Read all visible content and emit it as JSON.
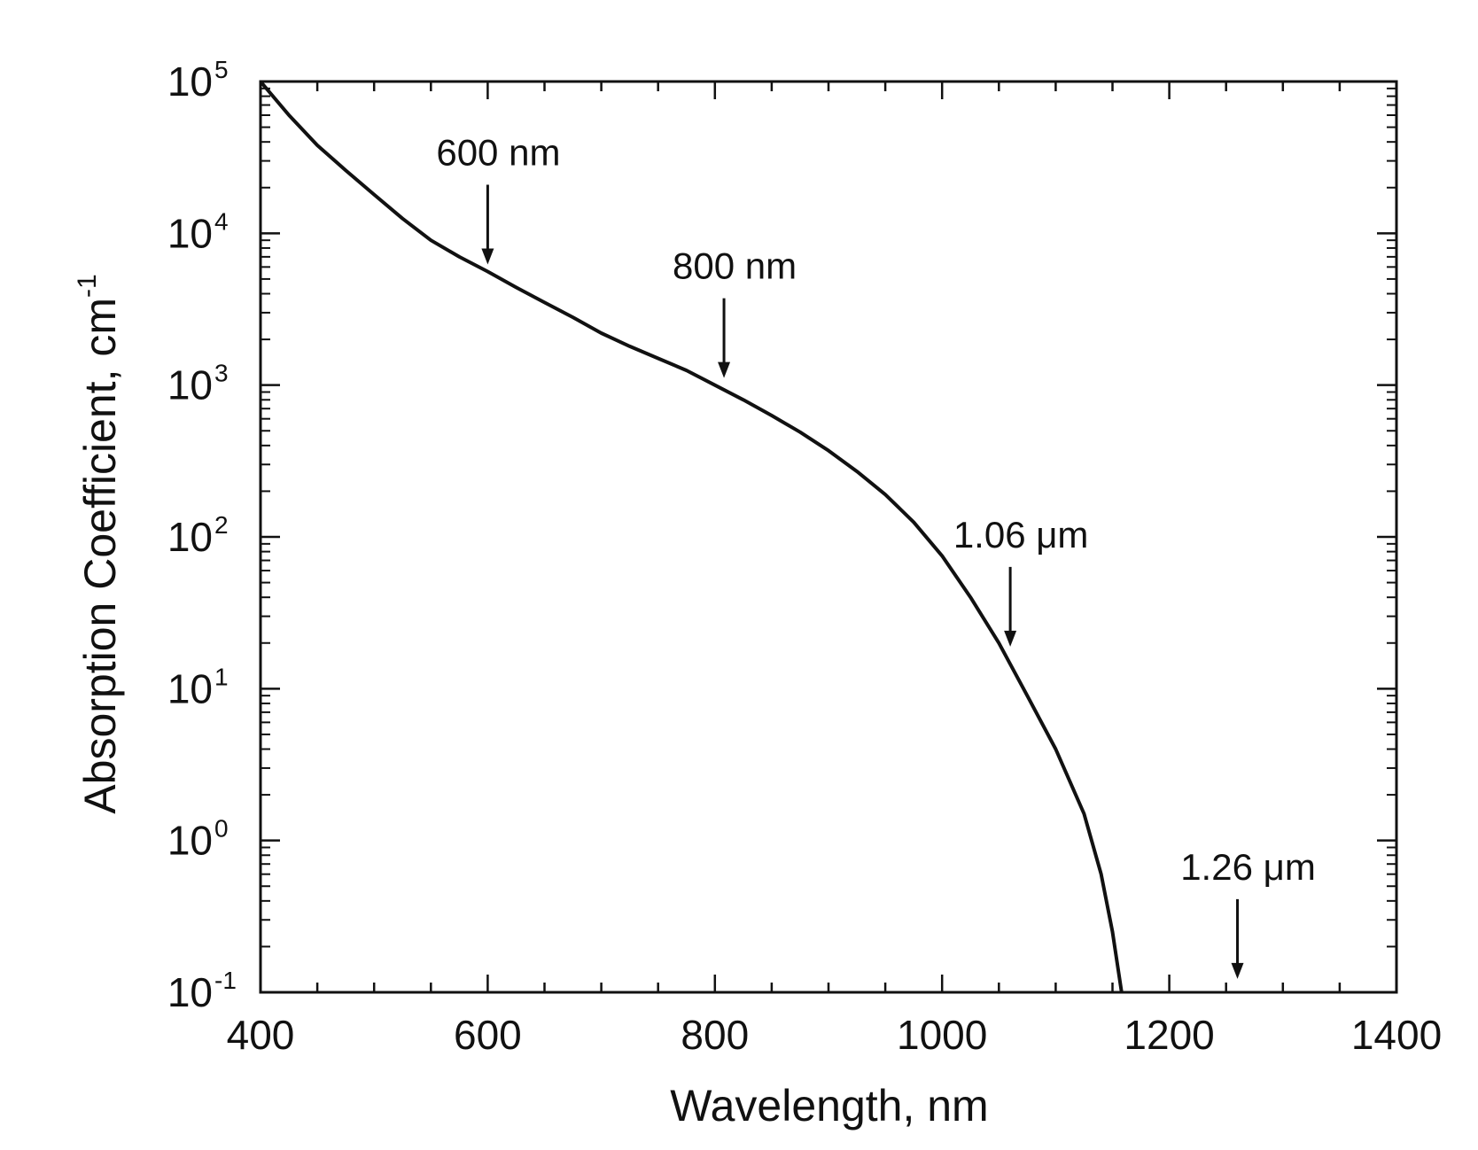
{
  "chart_data": {
    "type": "line",
    "title": "",
    "xlabel": "Wavelength, nm",
    "ylabel_text": "Absorption Coefficient, cm",
    "ylabel_exponent": "-1",
    "xlim": [
      400,
      1400
    ],
    "ylim": [
      0.1,
      100000
    ],
    "y_scale": "log",
    "grid": false,
    "x_ticks": [
      {
        "value": 400,
        "label": "400"
      },
      {
        "value": 600,
        "label": "600"
      },
      {
        "value": 800,
        "label": "800"
      },
      {
        "value": 1000,
        "label": "1000"
      },
      {
        "value": 1200,
        "label": "1200"
      },
      {
        "value": 1400,
        "label": "1400"
      }
    ],
    "y_ticks": [
      {
        "value": 100000,
        "base": "10",
        "exp": "5"
      },
      {
        "value": 10000,
        "base": "10",
        "exp": "4"
      },
      {
        "value": 1000,
        "base": "10",
        "exp": "3"
      },
      {
        "value": 100,
        "base": "10",
        "exp": "2"
      },
      {
        "value": 10,
        "base": "10",
        "exp": "1"
      },
      {
        "value": 1,
        "base": "10",
        "exp": "0"
      },
      {
        "value": 0.1,
        "base": "10",
        "exp": "-1"
      }
    ],
    "series": [
      {
        "color": "#111111",
        "points": [
          [
            400,
            100000
          ],
          [
            425,
            60000
          ],
          [
            450,
            38000
          ],
          [
            475,
            26000
          ],
          [
            500,
            18000
          ],
          [
            525,
            12500
          ],
          [
            550,
            9000
          ],
          [
            575,
            7000
          ],
          [
            600,
            5600
          ],
          [
            625,
            4400
          ],
          [
            650,
            3500
          ],
          [
            675,
            2800
          ],
          [
            700,
            2200
          ],
          [
            725,
            1800
          ],
          [
            750,
            1500
          ],
          [
            775,
            1250
          ],
          [
            800,
            1000
          ],
          [
            825,
            800
          ],
          [
            850,
            630
          ],
          [
            875,
            490
          ],
          [
            900,
            370
          ],
          [
            925,
            270
          ],
          [
            950,
            190
          ],
          [
            975,
            125
          ],
          [
            1000,
            75
          ],
          [
            1025,
            40
          ],
          [
            1050,
            20
          ],
          [
            1075,
            9
          ],
          [
            1100,
            4
          ],
          [
            1125,
            1.5
          ],
          [
            1140,
            0.6
          ],
          [
            1150,
            0.25
          ],
          [
            1158,
            0.1
          ]
        ]
      }
    ],
    "annotations": [
      {
        "text": "600 nm",
        "x": 600,
        "y": 5600
      },
      {
        "text": "800 nm",
        "x": 808,
        "y": 1000
      },
      {
        "text": "1.06 μm",
        "x": 1060,
        "y": 17
      },
      {
        "text": "1.26 μm",
        "x": 1260,
        "y": 0.11
      }
    ]
  }
}
